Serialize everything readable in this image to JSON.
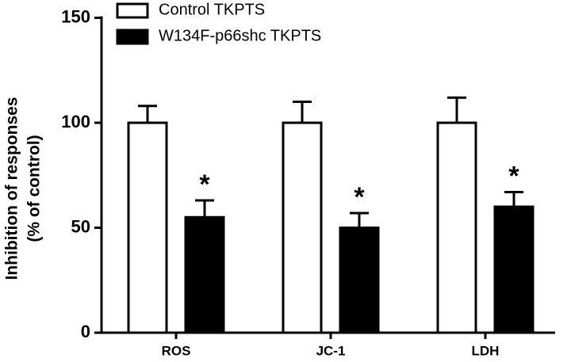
{
  "chart_data": {
    "type": "bar",
    "y_label": [
      "Inhibition of responses",
      "(% of control)"
    ],
    "categories": [
      "ROS",
      "JC-1",
      "LDH"
    ],
    "series": [
      {
        "name": "Control TKPTS",
        "color": "#ffffff",
        "values": [
          100,
          100,
          100
        ],
        "errors": [
          8,
          10,
          12
        ]
      },
      {
        "name": "W134F-p66shc TKPTS",
        "color": "#000000",
        "values": [
          55,
          50,
          60
        ],
        "errors": [
          8,
          7,
          7
        ],
        "annotations": [
          "*",
          "*",
          "*"
        ]
      }
    ],
    "ylim": [
      0,
      150
    ],
    "yticks": [
      0,
      50,
      100,
      150
    ],
    "legend": "top-left"
  }
}
